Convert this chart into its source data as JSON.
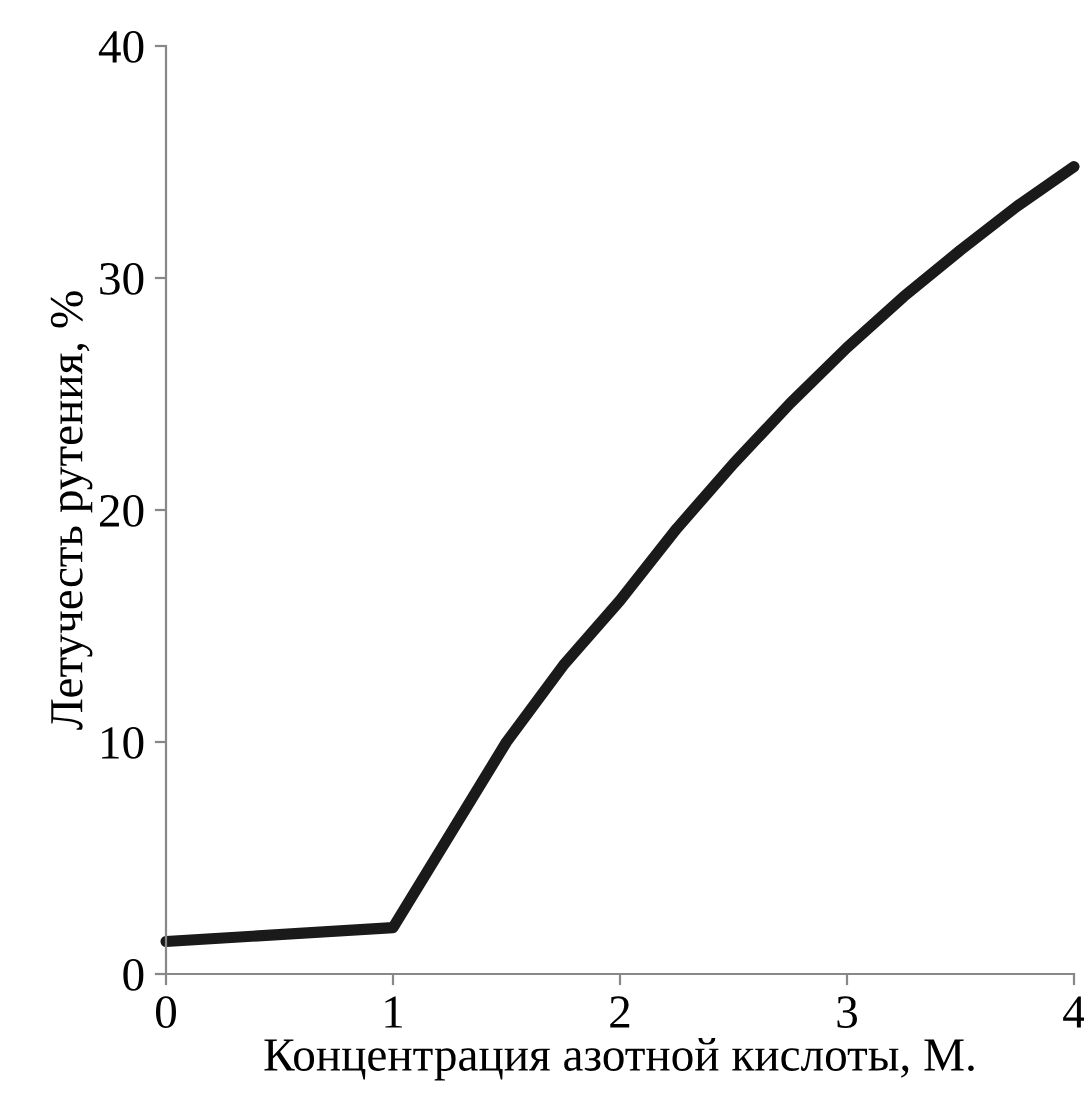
{
  "chart_data": {
    "type": "line",
    "xlabel": "Концентрация азотной кислоты, М.",
    "ylabel": "Летучесть рутения, %",
    "series": [
      {
        "color": "#1a1a1a",
        "x": [
          0,
          1,
          1.25,
          1.5,
          1.75,
          2,
          2.25,
          2.5,
          2.75,
          3,
          3.25,
          3.5,
          3.75,
          4
        ],
        "values": [
          1.4,
          2.0,
          6.0,
          10.0,
          13.3,
          16.1,
          19.2,
          22.0,
          24.6,
          27.0,
          29.2,
          31.2,
          33.1,
          34.8
        ]
      }
    ],
    "xlim": [
      0,
      4
    ],
    "ylim": [
      0,
      40
    ],
    "xticks": [
      0,
      1,
      2,
      3,
      4
    ],
    "yticks": [
      0,
      10,
      20,
      30,
      40
    ],
    "grid": false,
    "line_style": "solid",
    "marker": "none"
  }
}
